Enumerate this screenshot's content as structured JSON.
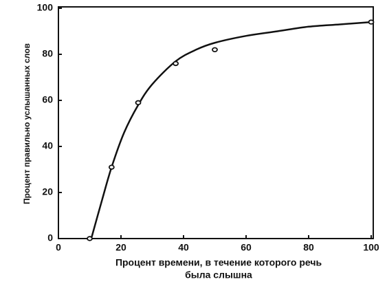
{
  "chart_data": {
    "type": "scatter",
    "xlabel": [
      "Процент времени, в течение которого речь",
      "была слышна"
    ],
    "ylabel": "Процент правильно услышанных слов",
    "xlim": [
      0,
      100
    ],
    "ylim": [
      0,
      100
    ],
    "xticks": [
      0,
      20,
      40,
      60,
      80,
      100
    ],
    "yticks": [
      0,
      20,
      40,
      60,
      80,
      100
    ],
    "color": "#111111",
    "series": [
      {
        "type": "scatter",
        "x": [
          10,
          17,
          25.5,
          37.5,
          50,
          100
        ],
        "values": [
          0,
          31,
          59,
          76,
          82,
          94
        ]
      },
      {
        "type": "line",
        "x": [
          10.5,
          14,
          17,
          21,
          25.5,
          30,
          37.5,
          44,
          50,
          60,
          70,
          80,
          90,
          100
        ],
        "values": [
          0,
          17,
          31,
          46,
          58,
          67,
          77,
          82,
          85,
          88,
          90,
          92,
          93,
          94
        ]
      }
    ]
  }
}
